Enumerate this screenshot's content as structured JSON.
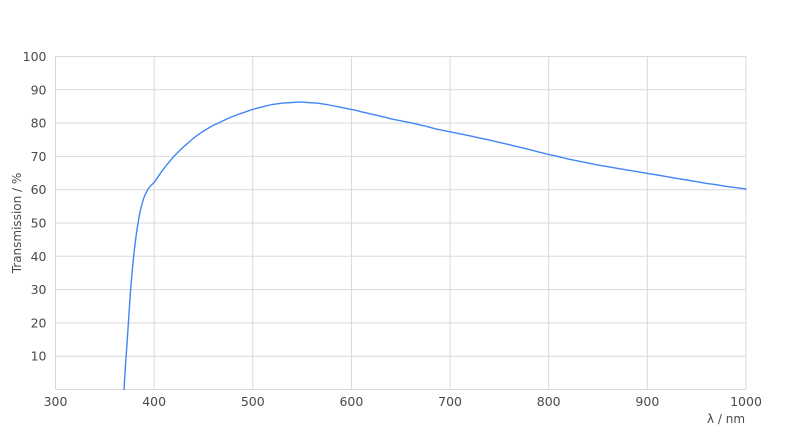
{
  "chart_data": {
    "type": "line",
    "title": "",
    "xlabel": "λ / nm",
    "ylabel": "Transmission / %",
    "xlim": [
      300,
      1000
    ],
    "ylim": [
      0,
      100
    ],
    "xticks": [
      300,
      400,
      500,
      600,
      700,
      800,
      900,
      1000
    ],
    "yticks": [
      10,
      20,
      30,
      40,
      50,
      60,
      70,
      80,
      90,
      100
    ],
    "grid": true,
    "legend_position": "none",
    "colors": {
      "line": "#4285f4",
      "gridline": "#d9d9d9",
      "tick_text": "#4a4a4a",
      "background": "#ffffff"
    },
    "series": [
      {
        "name": "Transmission",
        "x": [
          369.5,
          370,
          370.5,
          371,
          372,
          373,
          374,
          375,
          376,
          377,
          378,
          379,
          380,
          381,
          382,
          383,
          384,
          385,
          386,
          387,
          388,
          389,
          390,
          392,
          394,
          396,
          398,
          400,
          402,
          404,
          406,
          408,
          410,
          412,
          414,
          416,
          418,
          420,
          425,
          430,
          435,
          440,
          445,
          450,
          455,
          460,
          465,
          470,
          475,
          480,
          485,
          490,
          495,
          500,
          505,
          510,
          515,
          520,
          525,
          530,
          535,
          540,
          545,
          550,
          555,
          560,
          565,
          570,
          575,
          580,
          585,
          590,
          595,
          600,
          605,
          610,
          615,
          620,
          625,
          630,
          635,
          640,
          645,
          650,
          655,
          660,
          665,
          670,
          675,
          680,
          685,
          690,
          695,
          700,
          710,
          720,
          730,
          740,
          750,
          760,
          770,
          780,
          790,
          800,
          810,
          820,
          830,
          840,
          850,
          860,
          870,
          880,
          890,
          900,
          910,
          920,
          930,
          940,
          950,
          960,
          970,
          980,
          990,
          1000
        ],
        "y": [
          0,
          2.5,
          5,
          7.5,
          11.5,
          16,
          20.5,
          25,
          29.5,
          33,
          36.3,
          39.3,
          42,
          44.5,
          46.8,
          48.8,
          50.5,
          52.2,
          53.6,
          54.9,
          56,
          57,
          57.9,
          59.2,
          60.3,
          61,
          61.6,
          62.2,
          63,
          63.9,
          64.8,
          65.6,
          66.4,
          67.2,
          67.9,
          68.6,
          69.3,
          70,
          71.5,
          72.9,
          74.2,
          75.5,
          76.6,
          77.6,
          78.5,
          79.3,
          80,
          80.7,
          81.4,
          82,
          82.6,
          83.1,
          83.6,
          84.1,
          84.5,
          84.9,
          85.3,
          85.6,
          85.8,
          86,
          86.1,
          86.2,
          86.3,
          86.3,
          86.2,
          86.1,
          86,
          85.8,
          85.6,
          85.3,
          85,
          84.7,
          84.4,
          84.1,
          83.8,
          83.4,
          83.1,
          82.7,
          82.4,
          82,
          81.7,
          81.3,
          81,
          80.7,
          80.4,
          80.1,
          79.8,
          79.4,
          79.1,
          78.7,
          78.3,
          78,
          77.7,
          77.4,
          76.8,
          76.2,
          75.5,
          74.9,
          74.2,
          73.5,
          72.8,
          72.1,
          71.3,
          70.6,
          69.9,
          69.2,
          68.6,
          68,
          67.4,
          66.9,
          66.4,
          65.9,
          65.4,
          64.9,
          64.4,
          63.9,
          63.4,
          62.9,
          62.4,
          61.9,
          61.5,
          61,
          60.6,
          60.2
        ]
      }
    ]
  }
}
